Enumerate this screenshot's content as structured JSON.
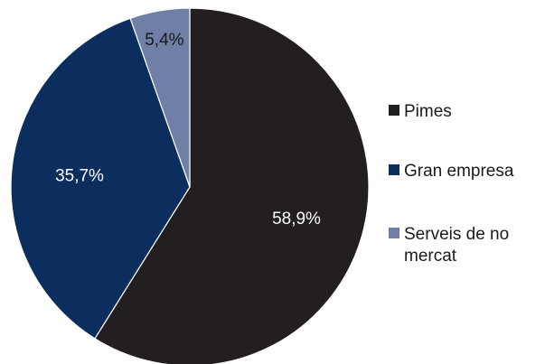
{
  "chart_data": {
    "type": "pie",
    "categories": [
      "Pimes",
      "Gran empresa",
      "Serveis de no mercat"
    ],
    "values": [
      58.9,
      35.7,
      5.4
    ],
    "data_labels": [
      "58,9%",
      "35,7%",
      "5,4%"
    ],
    "colors": [
      "#231f20",
      "#0c2e5e",
      "#6f7fa6"
    ],
    "label_colors": [
      "#ffffff",
      "#ffffff",
      "#1a1a1a"
    ],
    "legend": {
      "placement": "right",
      "entries": [
        {
          "lines": [
            "Pimes"
          ]
        },
        {
          "lines": [
            "Gran empresa"
          ]
        },
        {
          "lines": [
            "Serveis de no",
            "mercat"
          ]
        }
      ]
    },
    "start_angle": "12 o'clock",
    "direction": "clockwise"
  }
}
